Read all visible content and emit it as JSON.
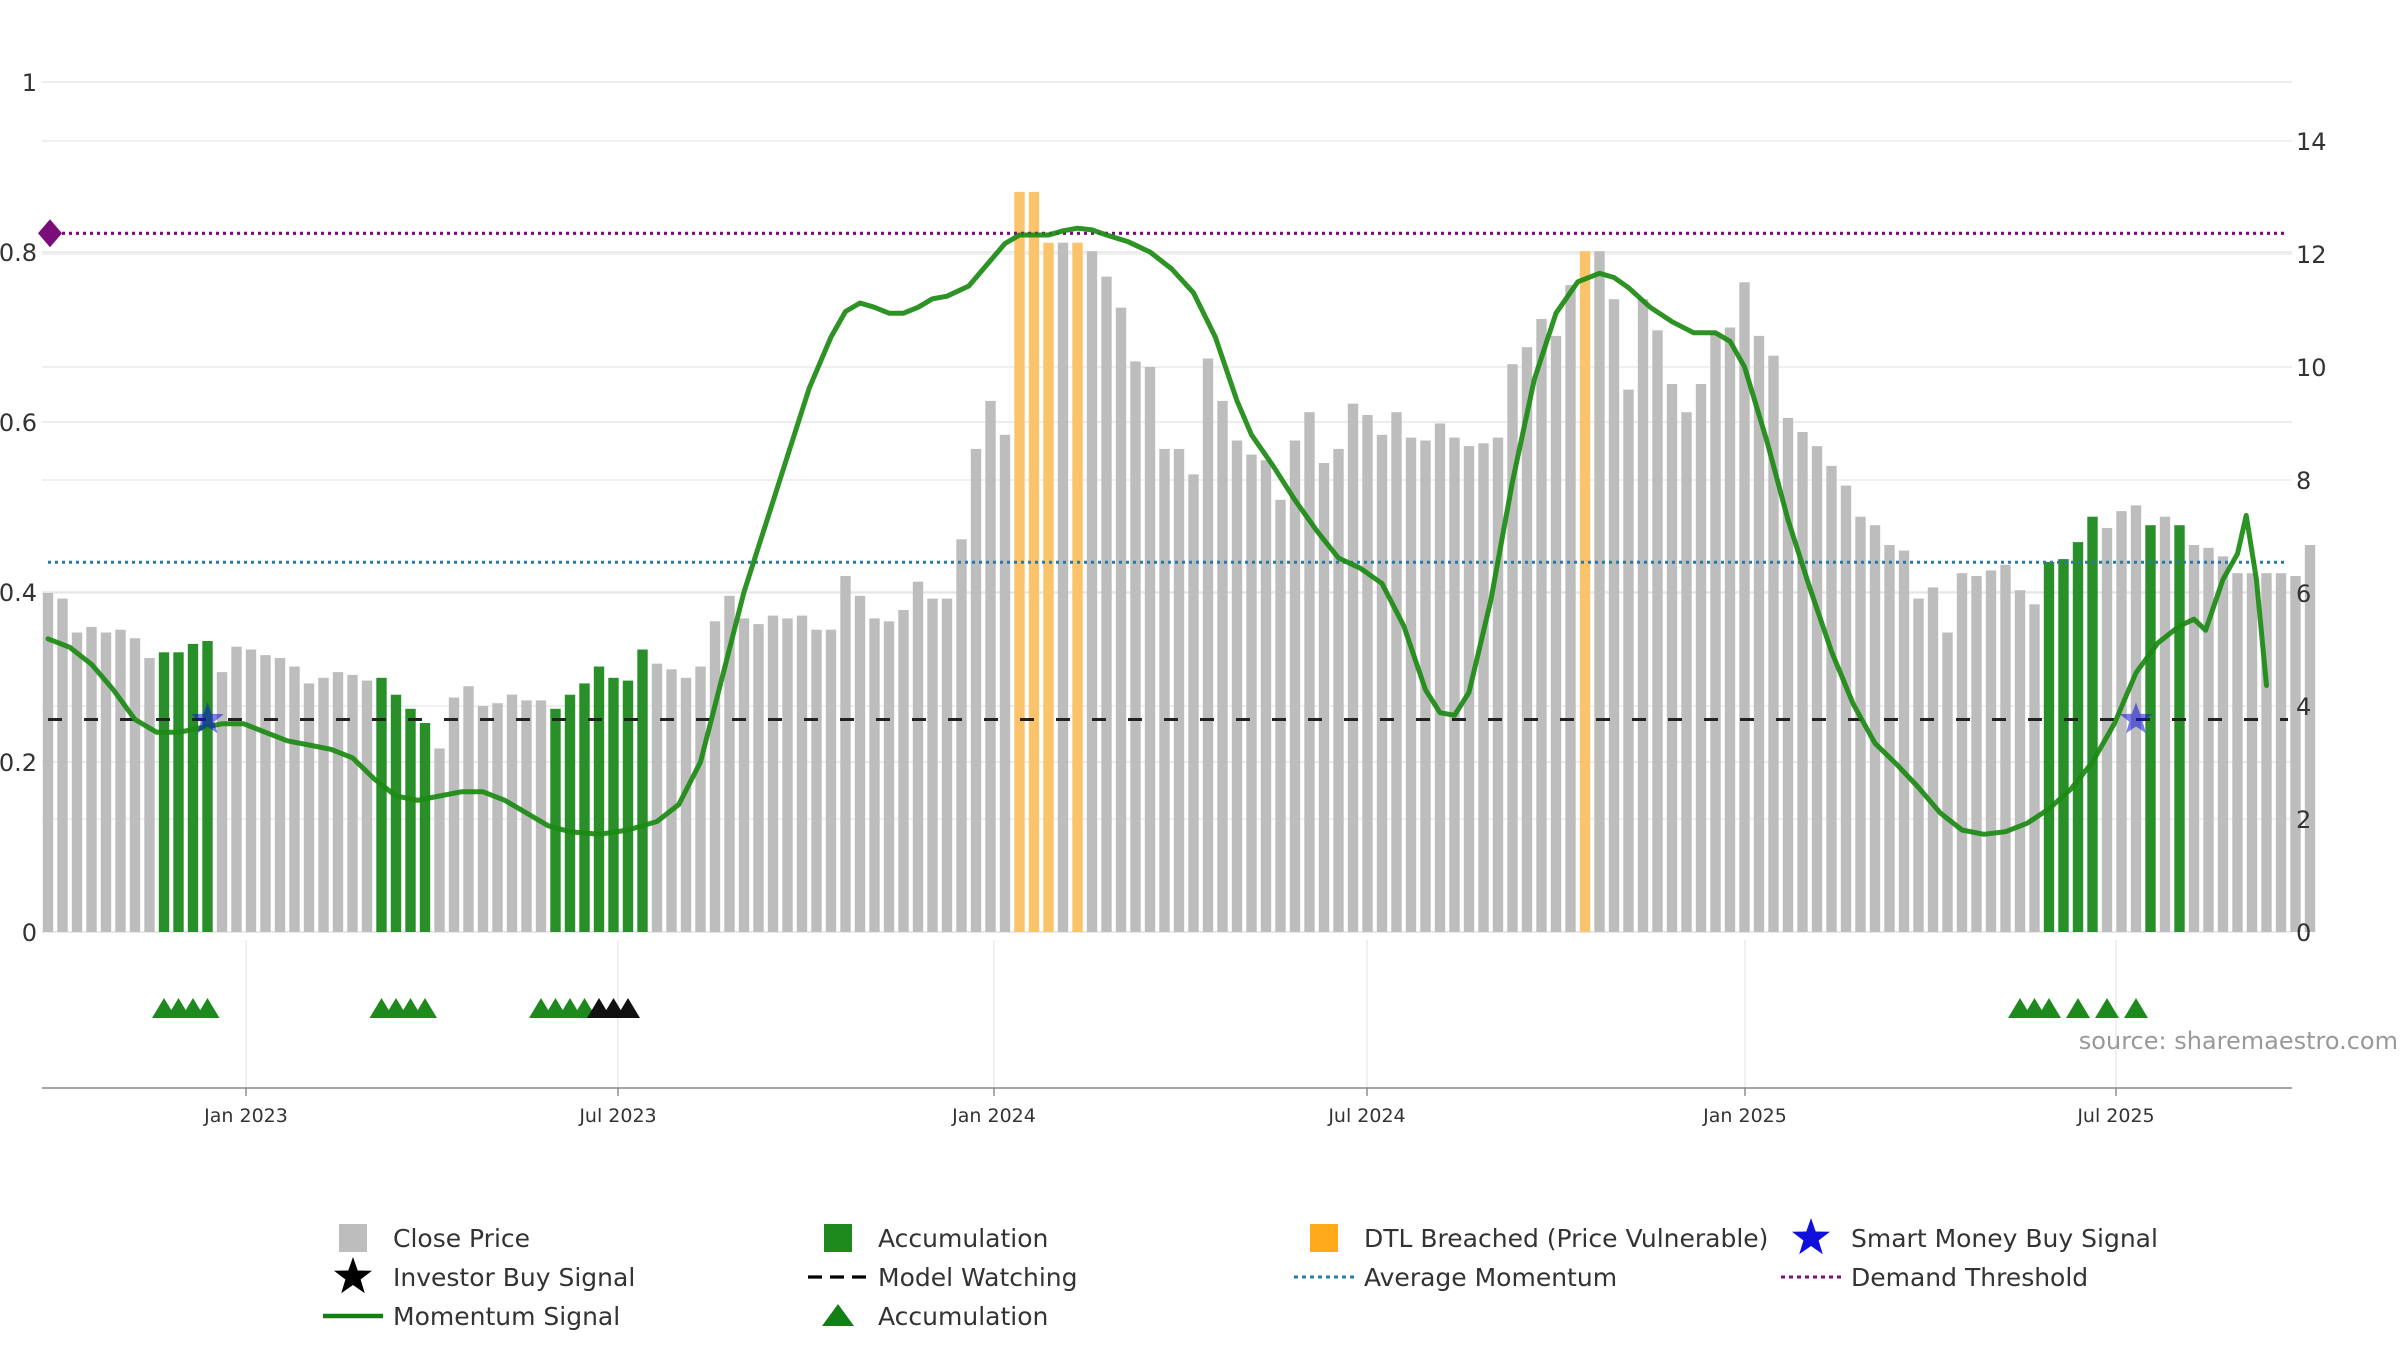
{
  "chart_data": {
    "type": "bar",
    "title": "",
    "x_tick_labels": [
      "Jan 2023",
      "Jul 2023",
      "Jan 2024",
      "Jul 2024",
      "Jan 2025",
      "Jul 2025"
    ],
    "left_axis": {
      "range": [
        -0.18,
        1
      ],
      "ticks": [
        "0",
        "0.2",
        "0.4",
        "0.6",
        "0.8",
        "1"
      ],
      "tick_values": [
        0,
        0.2,
        0.4,
        0.6,
        0.8,
        1
      ]
    },
    "right_axis": {
      "range": [
        0,
        14.4
      ],
      "ticks": [
        "0",
        "2",
        "4",
        "6",
        "8",
        "10",
        "12",
        "14"
      ],
      "tick_values": [
        0,
        2,
        4,
        6,
        8,
        10,
        12,
        14
      ]
    },
    "close_price": [
      6.0,
      5.9,
      5.3,
      5.4,
      5.3,
      5.35,
      5.2,
      4.85,
      4.95,
      4.95,
      5.1,
      5.15,
      4.6,
      5.05,
      5.0,
      4.9,
      4.85,
      4.7,
      4.4,
      4.5,
      4.6,
      4.55,
      4.45,
      4.5,
      4.2,
      3.95,
      3.7,
      3.25,
      4.15,
      4.35,
      4.0,
      4.05,
      4.2,
      4.1,
      4.1,
      3.95,
      4.2,
      4.4,
      4.7,
      4.5,
      4.45,
      5.0,
      4.75,
      4.65,
      4.5,
      4.7,
      5.5,
      5.95,
      5.55,
      5.45,
      5.6,
      5.55,
      5.6,
      5.35,
      5.35,
      6.3,
      5.95,
      5.55,
      5.5,
      5.7,
      6.2,
      5.9,
      5.9,
      6.95,
      8.55,
      9.4,
      8.8,
      13.1,
      13.1,
      12.2,
      12.2,
      12.2,
      12.05,
      11.6,
      11.05,
      10.1,
      10.0,
      8.55,
      8.55,
      8.1,
      10.15,
      9.4,
      8.7,
      8.45,
      8.35,
      7.65,
      8.7,
      9.2,
      8.3,
      8.55,
      9.35,
      9.15,
      8.8,
      9.2,
      8.75,
      8.7,
      9.0,
      8.75,
      8.6,
      8.65,
      8.75,
      10.05,
      10.35,
      10.85,
      10.55,
      11.45,
      12.05,
      12.05,
      11.2,
      9.6,
      11.2,
      10.65,
      9.7,
      9.2,
      9.7,
      10.6,
      10.7,
      11.5,
      10.55,
      10.2,
      9.1,
      8.85,
      8.6,
      8.25,
      7.9,
      7.35,
      7.2,
      6.85,
      6.75,
      5.9,
      6.1,
      5.3,
      6.35,
      6.3,
      6.4,
      6.5,
      6.05,
      5.8,
      6.55,
      6.6,
      6.9,
      7.35,
      7.15,
      7.45,
      7.55,
      7.2,
      7.35,
      7.2,
      6.85,
      6.8,
      6.65,
      6.35,
      6.35,
      6.35,
      6.35,
      6.3,
      6.85
    ],
    "bar_category": [
      "grey",
      "grey",
      "grey",
      "grey",
      "grey",
      "grey",
      "grey",
      "grey",
      "green",
      "green",
      "green",
      "green",
      "grey",
      "grey",
      "grey",
      "grey",
      "grey",
      "grey",
      "grey",
      "grey",
      "grey",
      "grey",
      "grey",
      "green",
      "green",
      "green",
      "green",
      "grey",
      "grey",
      "grey",
      "grey",
      "grey",
      "grey",
      "grey",
      "grey",
      "green",
      "green",
      "green",
      "green",
      "green",
      "green",
      "green",
      "grey",
      "grey",
      "grey",
      "grey",
      "grey",
      "grey",
      "grey",
      "grey",
      "grey",
      "grey",
      "grey",
      "grey",
      "grey",
      "grey",
      "grey",
      "grey",
      "grey",
      "grey",
      "grey",
      "grey",
      "grey",
      "grey",
      "grey",
      "grey",
      "grey",
      "orange",
      "orange",
      "orange",
      "grey",
      "orange",
      "grey",
      "grey",
      "grey",
      "grey",
      "grey",
      "grey",
      "grey",
      "grey",
      "grey",
      "grey",
      "grey",
      "grey",
      "grey",
      "grey",
      "grey",
      "grey",
      "grey",
      "grey",
      "grey",
      "grey",
      "grey",
      "grey",
      "grey",
      "grey",
      "grey",
      "grey",
      "grey",
      "grey",
      "grey",
      "grey",
      "grey",
      "grey",
      "grey",
      "grey",
      "orange",
      "grey",
      "grey",
      "grey",
      "grey",
      "grey",
      "grey",
      "grey",
      "grey",
      "grey",
      "grey",
      "grey",
      "grey",
      "grey",
      "grey",
      "grey",
      "grey",
      "grey",
      "grey",
      "grey",
      "grey",
      "grey",
      "grey",
      "grey",
      "grey",
      "grey",
      "grey",
      "grey",
      "grey",
      "grey",
      "grey",
      "grey",
      "green",
      "green",
      "green",
      "green",
      "grey",
      "grey",
      "grey",
      "green",
      "grey",
      "green",
      "grey",
      "grey",
      "grey",
      "grey",
      "grey",
      "grey",
      "grey",
      "grey",
      "grey"
    ],
    "momentum_signal": [
      [
        0.0,
        0.345
      ],
      [
        1.5,
        0.335
      ],
      [
        3.0,
        0.315
      ],
      [
        4.5,
        0.285
      ],
      [
        6.0,
        0.25
      ],
      [
        7.5,
        0.235
      ],
      [
        9.0,
        0.235
      ],
      [
        10.5,
        0.24
      ],
      [
        12.0,
        0.245
      ],
      [
        13.5,
        0.245
      ],
      [
        15.0,
        0.235
      ],
      [
        16.5,
        0.225
      ],
      [
        18.0,
        0.22
      ],
      [
        19.5,
        0.215
      ],
      [
        21.0,
        0.205
      ],
      [
        22.5,
        0.18
      ],
      [
        24.0,
        0.16
      ],
      [
        25.5,
        0.155
      ],
      [
        27.0,
        0.16
      ],
      [
        28.5,
        0.165
      ],
      [
        30.0,
        0.165
      ],
      [
        31.5,
        0.155
      ],
      [
        33.0,
        0.14
      ],
      [
        34.5,
        0.125
      ],
      [
        36.0,
        0.118
      ],
      [
        38.0,
        0.115
      ],
      [
        40.0,
        0.12
      ],
      [
        42.0,
        0.13
      ],
      [
        43.5,
        0.15
      ],
      [
        45.0,
        0.2
      ],
      [
        46.5,
        0.3
      ],
      [
        48.0,
        0.4
      ],
      [
        49.5,
        0.48
      ],
      [
        51.0,
        0.56
      ],
      [
        52.5,
        0.64
      ],
      [
        54.0,
        0.7
      ],
      [
        55.0,
        0.73
      ],
      [
        56.0,
        0.74
      ],
      [
        57.0,
        0.735
      ],
      [
        58.0,
        0.728
      ],
      [
        59.0,
        0.728
      ],
      [
        60.0,
        0.735
      ],
      [
        61.0,
        0.745
      ],
      [
        62.0,
        0.748
      ],
      [
        63.5,
        0.76
      ],
      [
        65.0,
        0.79
      ],
      [
        66.0,
        0.81
      ],
      [
        67.0,
        0.82
      ],
      [
        68.0,
        0.82
      ],
      [
        69.0,
        0.82
      ],
      [
        70.0,
        0.825
      ],
      [
        71.0,
        0.828
      ],
      [
        72.0,
        0.826
      ],
      [
        73.0,
        0.82
      ],
      [
        74.5,
        0.812
      ],
      [
        76.0,
        0.8
      ],
      [
        77.5,
        0.78
      ],
      [
        79.0,
        0.752
      ],
      [
        80.5,
        0.7
      ],
      [
        82.0,
        0.625
      ],
      [
        83.0,
        0.585
      ],
      [
        84.5,
        0.548
      ],
      [
        86.0,
        0.508
      ],
      [
        87.5,
        0.472
      ],
      [
        89.0,
        0.44
      ],
      [
        90.5,
        0.428
      ],
      [
        92.0,
        0.41
      ],
      [
        93.5,
        0.36
      ],
      [
        95.0,
        0.285
      ],
      [
        96.0,
        0.258
      ],
      [
        97.0,
        0.255
      ],
      [
        98.0,
        0.282
      ],
      [
        99.5,
        0.39
      ],
      [
        101.0,
        0.53
      ],
      [
        102.5,
        0.65
      ],
      [
        104.0,
        0.728
      ],
      [
        105.5,
        0.765
      ],
      [
        107.0,
        0.775
      ],
      [
        108.0,
        0.77
      ],
      [
        109.0,
        0.758
      ],
      [
        110.5,
        0.735
      ],
      [
        112.0,
        0.718
      ],
      [
        113.5,
        0.705
      ],
      [
        115.0,
        0.705
      ],
      [
        116.0,
        0.695
      ],
      [
        117.0,
        0.665
      ],
      [
        118.5,
        0.58
      ],
      [
        120.0,
        0.485
      ],
      [
        121.5,
        0.405
      ],
      [
        123.0,
        0.33
      ],
      [
        124.5,
        0.268
      ],
      [
        126.0,
        0.222
      ],
      [
        127.5,
        0.197
      ],
      [
        129.0,
        0.17
      ],
      [
        130.5,
        0.14
      ],
      [
        132.0,
        0.12
      ],
      [
        133.5,
        0.115
      ],
      [
        135.0,
        0.118
      ],
      [
        136.5,
        0.128
      ],
      [
        138.0,
        0.145
      ],
      [
        139.5,
        0.168
      ],
      [
        141.0,
        0.2
      ],
      [
        142.5,
        0.245
      ],
      [
        144.0,
        0.305
      ],
      [
        145.5,
        0.34
      ],
      [
        147.0,
        0.36
      ],
      [
        148.0,
        0.368
      ],
      [
        148.8,
        0.355
      ],
      [
        150.0,
        0.415
      ],
      [
        151.0,
        0.445
      ],
      [
        151.6,
        0.49
      ],
      [
        152.3,
        0.415
      ],
      [
        153.0,
        0.29
      ]
    ],
    "accumulation_triangles": [
      8,
      9,
      10,
      11,
      23,
      24,
      25,
      26,
      34,
      35,
      36,
      37,
      136,
      137,
      138,
      140,
      142,
      144
    ],
    "investor_buy_signals": [
      38,
      39,
      40
    ],
    "smart_money_buy_signals": [
      11,
      144
    ],
    "model_watching_level": 0.25,
    "average_momentum_level": 0.435,
    "demand_threshold_level": 0.822,
    "threshold_marker": "diamond",
    "source_text": "source: sharemaestro.com",
    "legend": [
      {
        "label": "Close Price",
        "symbol": "grey-square"
      },
      {
        "label": "Accumulation",
        "symbol": "green-square"
      },
      {
        "label": "DTL Breached (Price Vulnerable)",
        "symbol": "orange-square"
      },
      {
        "label": "Smart Money Buy Signal",
        "symbol": "blue-star"
      },
      {
        "label": "Investor Buy Signal",
        "symbol": "black-star"
      },
      {
        "label": "Model Watching",
        "symbol": "black-dash"
      },
      {
        "label": "Average Momentum",
        "symbol": "blue-dotted"
      },
      {
        "label": "Demand Threshold",
        "symbol": "purple-dotted"
      },
      {
        "label": "Momentum Signal",
        "symbol": "green-line"
      },
      {
        "label": "Accumulation",
        "symbol": "green-triangle"
      }
    ],
    "colors": {
      "grey": "#bdbdbd",
      "green": "#1e8a1e",
      "orange": "#fbc46b",
      "momentum": "#1b8a12",
      "avg_momentum": "#2a7aa6",
      "demand": "#7b0d7b",
      "model_watching": "#222222",
      "smart_money": "#1010dd",
      "investor": "#111111",
      "grid": "#e6e6e6",
      "axis": "#888888",
      "text": "#333333",
      "source": "#999999"
    }
  }
}
